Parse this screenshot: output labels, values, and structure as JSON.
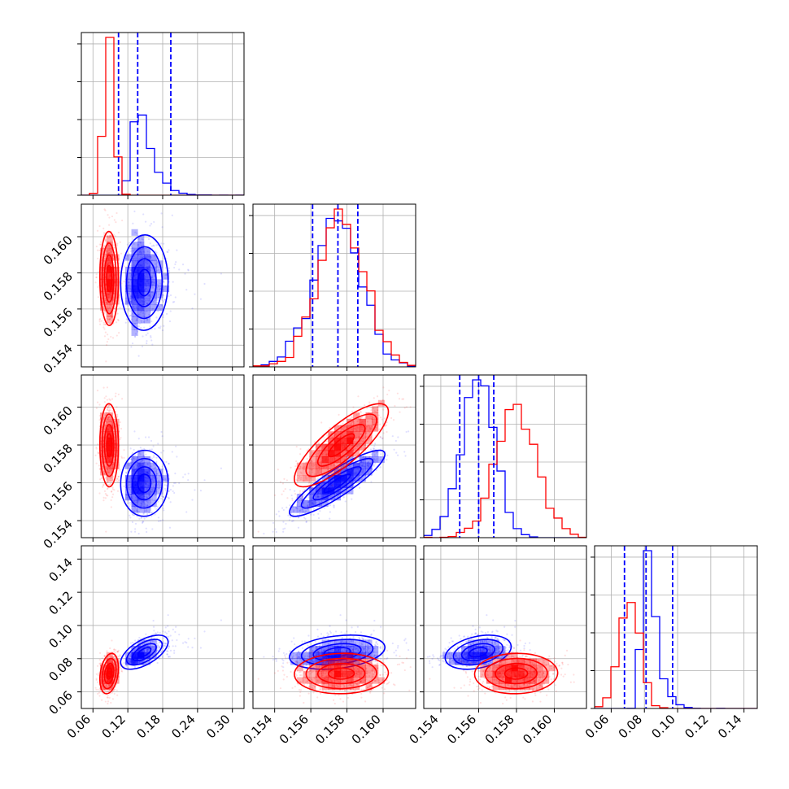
{
  "chart_data": {
    "type": "corner",
    "parameters": [
      {
        "ticks": [
          "0.06",
          "0.12",
          "0.18",
          "0.24",
          "0.30"
        ],
        "tick_values": [
          0.06,
          0.12,
          0.18,
          0.24,
          0.3
        ],
        "range": [
          0.04,
          0.32
        ]
      },
      {
        "ticks": [
          "0.154",
          "0.156",
          "0.158",
          "0.160"
        ],
        "tick_values": [
          0.154,
          0.156,
          0.158,
          0.16
        ],
        "range": [
          0.1528,
          0.1618
        ]
      },
      {
        "ticks": [
          "0.154",
          "0.156",
          "0.158",
          "0.160"
        ],
        "tick_values": [
          0.154,
          0.156,
          0.158,
          0.16
        ],
        "range": [
          0.1531,
          0.1617
        ]
      },
      {
        "ticks": [
          "0.06",
          "0.08",
          "0.10",
          "0.12",
          "0.14"
        ],
        "tick_values": [
          0.06,
          0.08,
          0.1,
          0.12,
          0.14
        ],
        "range": [
          0.05,
          0.148
        ]
      }
    ],
    "series": [
      {
        "color": "#0000ff",
        "means": [
          0.145,
          0.1575,
          0.156,
          0.083
        ],
        "sigmas": [
          0.045,
          0.0013,
          0.00085,
          0.014
        ],
        "skew_tail": [
          true,
          false,
          false,
          true
        ],
        "corr": {
          "1-0": 0.0,
          "2-0": 0.0,
          "3-0": 0.6,
          "2-1": 0.88,
          "3-1": 0.55,
          "3-2": 0.65
        },
        "quantiles": [
          [
            0.104,
            0.137,
            0.194
          ],
          [
            0.1561,
            0.1575,
            0.1586
          ],
          [
            0.155,
            0.156,
            0.1568
          ],
          [
            0.068,
            0.081,
            0.097
          ]
        ]
      },
      {
        "color": "#ff0000",
        "means": [
          0.088,
          0.1577,
          0.158,
          0.071
        ],
        "sigmas": [
          0.008,
          0.0013,
          0.0011,
          0.006
        ],
        "skew_tail": [
          false,
          false,
          false,
          false
        ],
        "corr": {
          "1-0": 0.0,
          "2-0": 0.0,
          "3-0": 0.3,
          "2-1": 0.82,
          "3-1": 0.15,
          "3-2": 0.05
        },
        "quantiles": null
      }
    ],
    "grid": true,
    "quantile_line_color": "#0000ff"
  }
}
